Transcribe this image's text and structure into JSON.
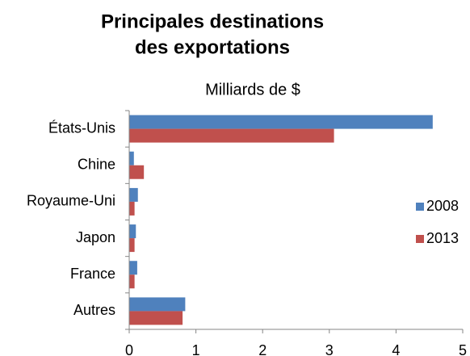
{
  "chart_data": {
    "type": "barh",
    "title": [
      "Principales destinations",
      "des exportations"
    ],
    "subtitle": "Milliards de $",
    "categories": [
      "États-Unis",
      "Chine",
      "Royaume-Uni",
      "Japon",
      "France",
      "Autres"
    ],
    "series": [
      {
        "name": "2008",
        "color": "#4f81bd",
        "values": [
          4.55,
          0.07,
          0.13,
          0.1,
          0.12,
          0.84
        ]
      },
      {
        "name": "2013",
        "color": "#c0504d",
        "values": [
          3.07,
          0.22,
          0.08,
          0.08,
          0.08,
          0.8
        ]
      }
    ],
    "xlim": [
      0,
      5
    ],
    "xticks": [
      0,
      1,
      2,
      3,
      4,
      5
    ],
    "grid": false,
    "legend": "right"
  }
}
